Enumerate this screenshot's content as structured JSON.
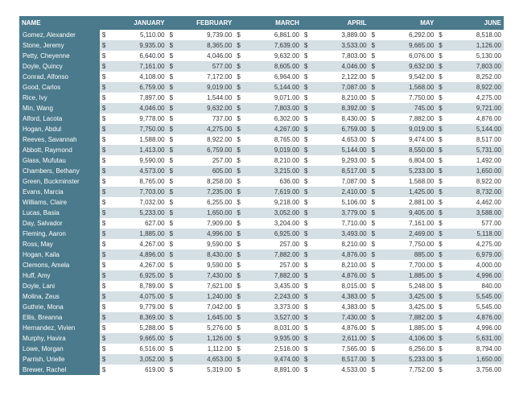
{
  "columns": [
    "NAME",
    "JANUARY",
    "FEBRUARY",
    "MARCH",
    "APRIL",
    "MAY",
    "JUNE"
  ],
  "colors": {
    "header_bg": "#4a7a8c",
    "header_fg": "#ffffff",
    "row_even_bg": "#ffffff",
    "row_odd_bg": "#d5e0e5",
    "text": "#333333"
  },
  "currency_symbol": "$",
  "rows": [
    {
      "name": "Gomez, Alexander",
      "v": [
        "5,110.00",
        "9,739.00",
        "6,861.00",
        "3,889.00",
        "6,292.00",
        "8,518.00"
      ]
    },
    {
      "name": "Stone, Jeremy",
      "v": [
        "9,935.00",
        "8,365.00",
        "7,639.00",
        "3,533.00",
        "9,665.00",
        "1,126.00"
      ]
    },
    {
      "name": "Petty, Cheyenne",
      "v": [
        "6,640.00",
        "4,046.00",
        "9,632.00",
        "7,803.00",
        "6,076.00",
        "5,130.00"
      ]
    },
    {
      "name": "Doyle, Quincy",
      "v": [
        "7,161.00",
        "577.00",
        "8,605.00",
        "4,046.00",
        "9,632.00",
        "7,803.00"
      ]
    },
    {
      "name": "Conrad, Alfonso",
      "v": [
        "4,108.00",
        "7,172.00",
        "6,964.00",
        "2,122.00",
        "9,542.00",
        "8,252.00"
      ]
    },
    {
      "name": "Good, Carlos",
      "v": [
        "6,759.00",
        "9,019.00",
        "5,144.00",
        "7,087.00",
        "1,568.00",
        "8,922.00"
      ]
    },
    {
      "name": "Rice, Ivy",
      "v": [
        "7,897.00",
        "1,544.00",
        "9,071.00",
        "8,210.00",
        "7,750.00",
        "4,275.00"
      ]
    },
    {
      "name": "Min, Wang",
      "v": [
        "4,046.00",
        "9,632.00",
        "7,803.00",
        "8,392.00",
        "745.00",
        "9,721.00"
      ]
    },
    {
      "name": "Alford, Lacota",
      "v": [
        "9,778.00",
        "737.00",
        "6,302.00",
        "8,430.00",
        "7,882.00",
        "4,876.00"
      ]
    },
    {
      "name": "Hogan, Abdul",
      "v": [
        "7,750.00",
        "4,275.00",
        "4,267.00",
        "6,759.00",
        "9,019.00",
        "5,144.00"
      ]
    },
    {
      "name": "Reeves, Savannah",
      "v": [
        "1,588.00",
        "8,922.00",
        "8,765.00",
        "4,653.00",
        "9,474.00",
        "8,517.00"
      ]
    },
    {
      "name": "Abbott, Raymond",
      "v": [
        "1,413.00",
        "6,759.00",
        "9,019.00",
        "5,144.00",
        "8,550.00",
        "5,731.00"
      ]
    },
    {
      "name": "Glass, Mufutau",
      "v": [
        "9,590.00",
        "257.00",
        "8,210.00",
        "9,293.00",
        "6,804.00",
        "1,492.00"
      ]
    },
    {
      "name": "Chambers, Bethany",
      "v": [
        "4,573.00",
        "605.00",
        "3,215.00",
        "8,517.00",
        "5,233.00",
        "1,650.00"
      ]
    },
    {
      "name": "Green, Buckminster",
      "v": [
        "8,765.00",
        "8,258.00",
        "636.00",
        "7,087.00",
        "1,568.00",
        "8,922.00"
      ]
    },
    {
      "name": "Evans, Marcia",
      "v": [
        "7,703.00",
        "7,235.00",
        "7,619.00",
        "2,410.00",
        "1,425.00",
        "8,732.00"
      ]
    },
    {
      "name": "Williams, Claire",
      "v": [
        "7,032.00",
        "6,255.00",
        "9,218.00",
        "5,106.00",
        "2,881.00",
        "4,462.00"
      ]
    },
    {
      "name": "Lucas, Basia",
      "v": [
        "5,233.00",
        "1,650.00",
        "3,052.00",
        "3,779.00",
        "9,405.00",
        "3,588.00"
      ]
    },
    {
      "name": "Day, Salvador",
      "v": [
        "627.00",
        "7,909.00",
        "3,204.00",
        "7,710.00",
        "7,161.00",
        "577.00"
      ]
    },
    {
      "name": "Fleming, Aaron",
      "v": [
        "1,885.00",
        "4,996.00",
        "6,925.00",
        "3,493.00",
        "2,469.00",
        "5,118.00"
      ]
    },
    {
      "name": "Ross, May",
      "v": [
        "4,267.00",
        "9,590.00",
        "257.00",
        "8,210.00",
        "7,750.00",
        "4,275.00"
      ]
    },
    {
      "name": "Hogan, Kaila",
      "v": [
        "4,896.00",
        "8,430.00",
        "7,882.00",
        "4,876.00",
        "885.00",
        "6,979.00"
      ]
    },
    {
      "name": "Clemons, Amela",
      "v": [
        "4,267.00",
        "9,590.00",
        "257.00",
        "8,210.00",
        "7,700.00",
        "4,000.00"
      ]
    },
    {
      "name": "Huff, Amy",
      "v": [
        "6,925.00",
        "7,430.00",
        "7,882.00",
        "4,876.00",
        "1,885.00",
        "4,996.00"
      ]
    },
    {
      "name": "Doyle, Lani",
      "v": [
        "8,789.00",
        "7,621.00",
        "3,435.00",
        "8,015.00",
        "5,248.00",
        "840.00"
      ]
    },
    {
      "name": "Molina, Zeus",
      "v": [
        "4,075.00",
        "1,240.00",
        "2,243.00",
        "4,383.00",
        "3,425.00",
        "5,545.00"
      ]
    },
    {
      "name": "Guthrie, Mona",
      "v": [
        "9,779.00",
        "7,042.00",
        "3,373.00",
        "4,383.00",
        "3,425.00",
        "5,545.00"
      ]
    },
    {
      "name": "Ellis, Breanna",
      "v": [
        "8,369.00",
        "1,645.00",
        "3,527.00",
        "7,430.00",
        "7,882.00",
        "4,876.00"
      ]
    },
    {
      "name": "Hernandez, Vivien",
      "v": [
        "5,288.00",
        "5,276.00",
        "8,031.00",
        "4,876.00",
        "1,885.00",
        "4,996.00"
      ]
    },
    {
      "name": "Murphy, Havira",
      "v": [
        "9,665.00",
        "1,126.00",
        "9,935.00",
        "2,611.00",
        "4,106.00",
        "5,631.00"
      ]
    },
    {
      "name": "Lowe, Morgan",
      "v": [
        "6,516.00",
        "1,112.00",
        "2,516.00",
        "7,565.00",
        "6,256.00",
        "8,794.00"
      ]
    },
    {
      "name": "Parrish, Urielle",
      "v": [
        "3,052.00",
        "4,653.00",
        "9,474.00",
        "8,517.00",
        "5,233.00",
        "1,650.00"
      ]
    },
    {
      "name": "Brewer, Rachel",
      "v": [
        "619.00",
        "5,319.00",
        "8,891.00",
        "4,533.00",
        "7,752.00",
        "3,756.00"
      ]
    }
  ]
}
